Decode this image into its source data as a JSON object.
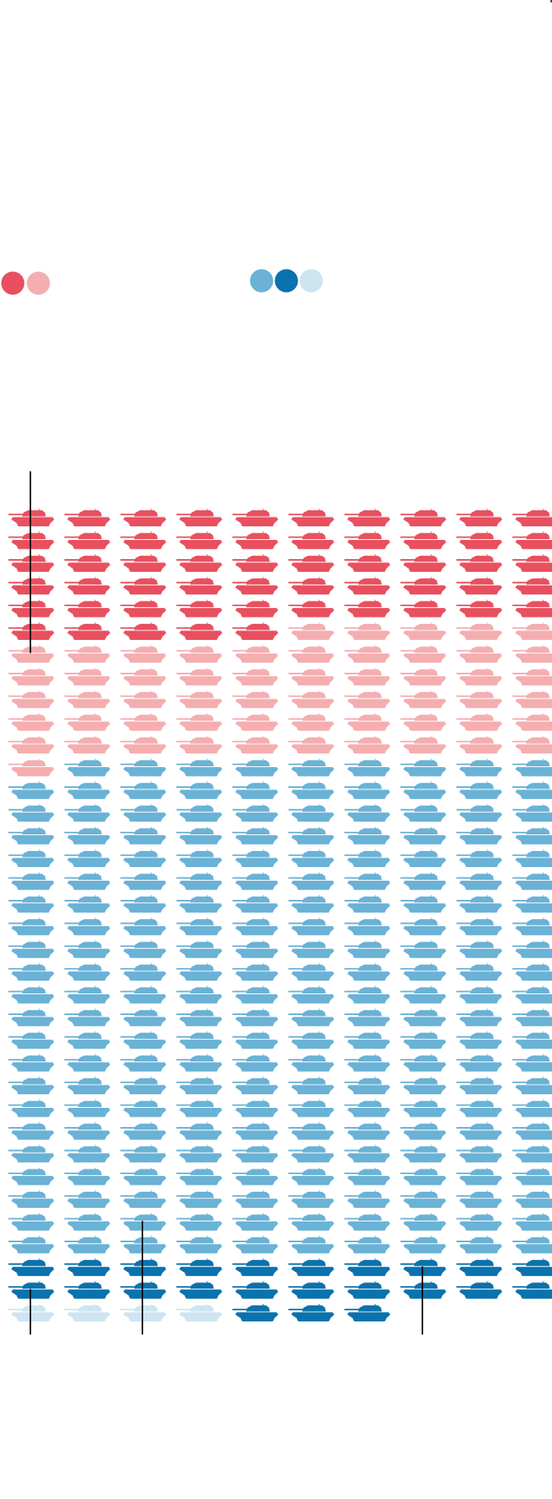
{
  "chart_data": {
    "type": "waffle",
    "title": "",
    "columns": 10,
    "unit": "tank",
    "legend": {
      "left_swatches": [
        "#e8505f",
        "#f5aeb0"
      ],
      "right_swatches": [
        "#6ab2d6",
        "#0a72ad",
        "#cde5f1"
      ]
    },
    "groups": [
      {
        "color": "#e8505f",
        "count": 55
      },
      {
        "color": "#f5aeb0",
        "count": 56
      },
      {
        "color": "#6ab2d6",
        "count": 219
      },
      {
        "color": "#0a72ad",
        "count": 20
      },
      {
        "color": "#cde5f1",
        "count": 4
      },
      {
        "color": "#0a72ad",
        "count": 3
      }
    ],
    "annotation_lines": [
      {
        "column": 0,
        "from_row": -2,
        "to_row": 6
      },
      {
        "column": 0,
        "from_row": 34,
        "to_row": 36
      },
      {
        "column": 2,
        "from_row": 31,
        "to_row": 36
      },
      {
        "column": 7,
        "from_row": 33,
        "to_row": 36
      }
    ]
  }
}
